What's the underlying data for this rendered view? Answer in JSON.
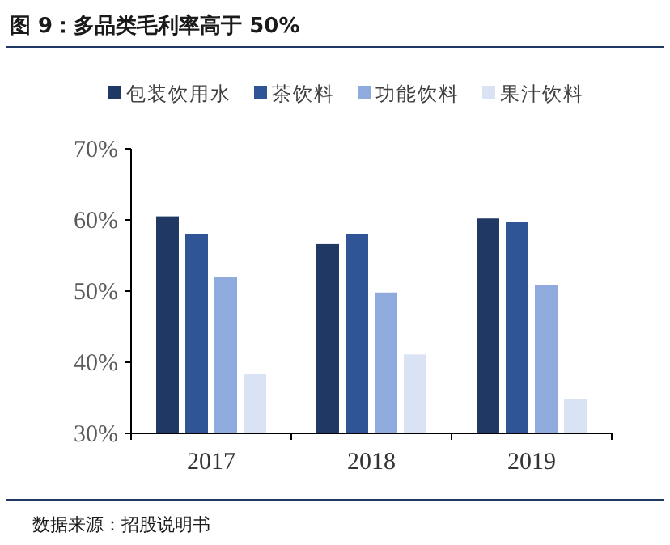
{
  "chart_data": {
    "type": "bar",
    "title": "图 9：多品类毛利率高于 50%",
    "categories": [
      "2017",
      "2018",
      "2019"
    ],
    "series": [
      {
        "name": "包装饮用水",
        "color": "#1f3864",
        "values": [
          60.5,
          56.6,
          60.2
        ]
      },
      {
        "name": "茶饮料",
        "color": "#2f5597",
        "values": [
          58.0,
          58.0,
          59.7
        ]
      },
      {
        "name": "功能饮料",
        "color": "#8faadc",
        "values": [
          52.0,
          49.8,
          50.9
        ]
      },
      {
        "name": "果汁饮料",
        "color": "#dae3f3",
        "values": [
          38.3,
          41.1,
          34.8
        ]
      }
    ],
    "ylim": [
      30,
      70
    ],
    "yticks": [
      {
        "value": 30,
        "label": "30%"
      },
      {
        "value": 40,
        "label": "40%"
      },
      {
        "value": 50,
        "label": "50%"
      },
      {
        "value": 60,
        "label": "60%"
      },
      {
        "value": 70,
        "label": "70%"
      }
    ],
    "legend": "top",
    "grid": false,
    "annotations": [
      "数据来源：招股说明书"
    ]
  }
}
